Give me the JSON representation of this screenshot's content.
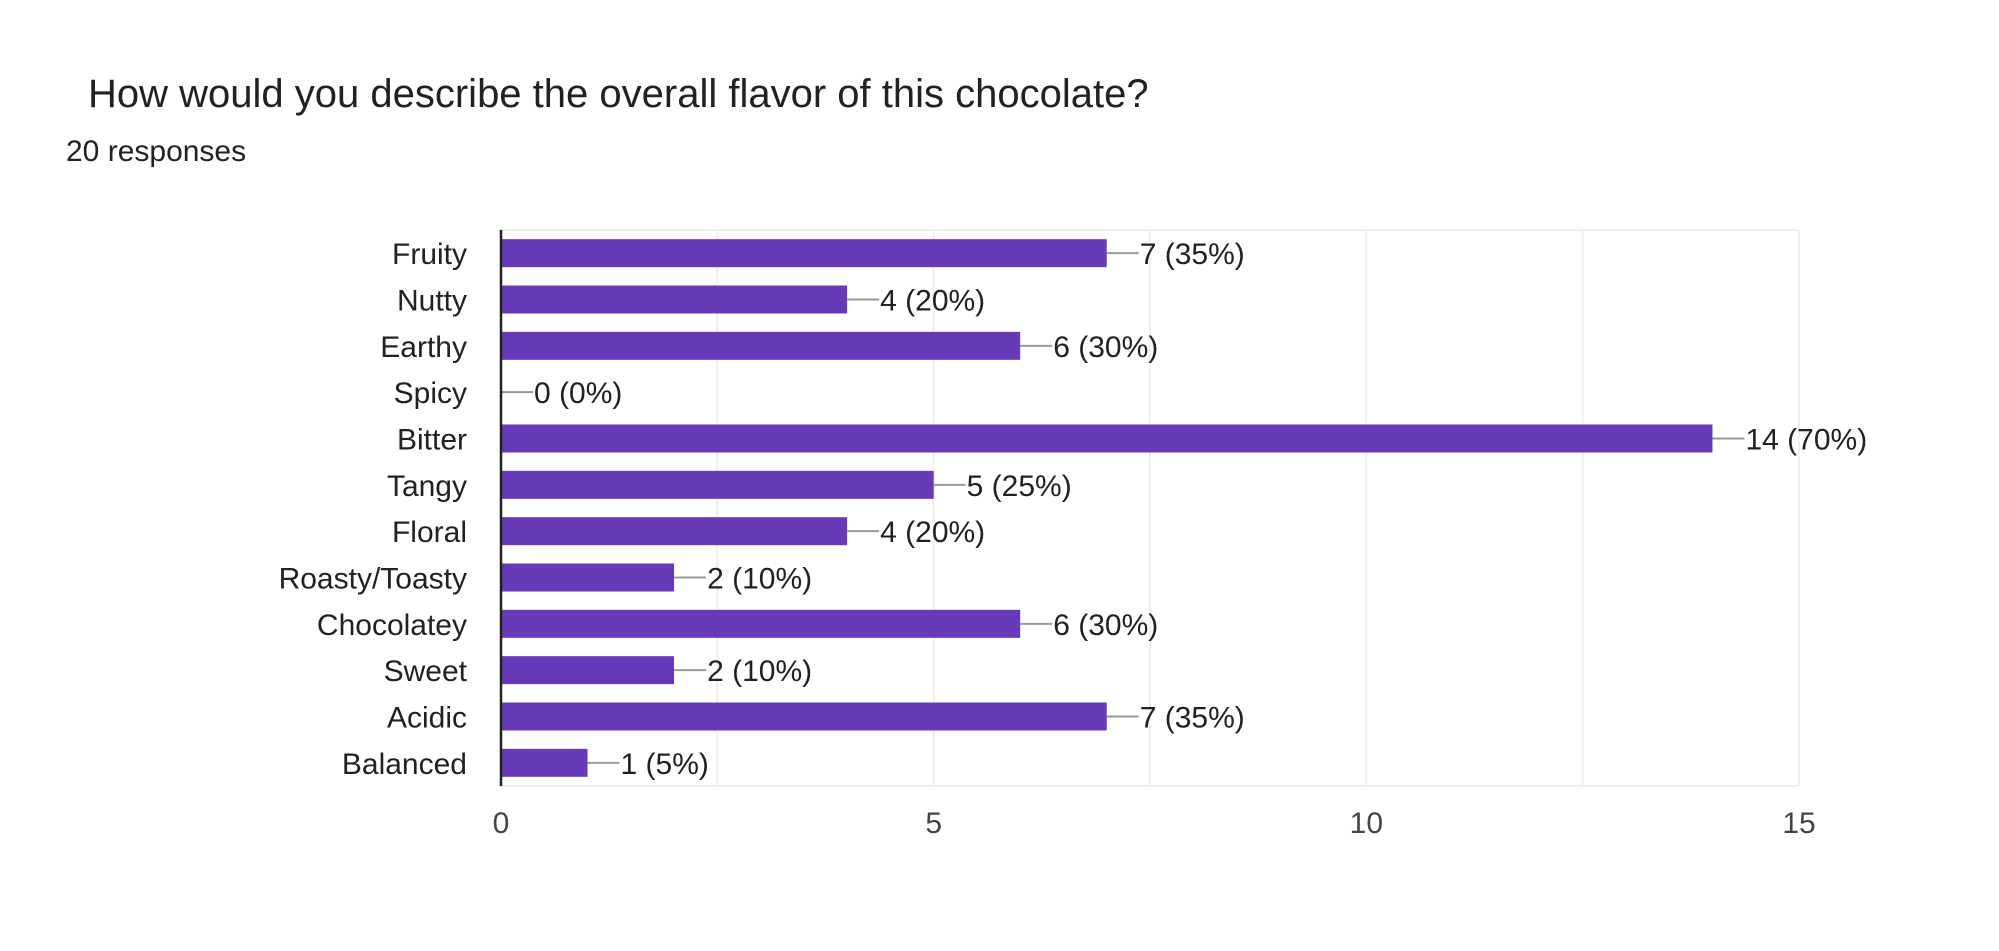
{
  "question": {
    "title": "How would you describe the overall flavor of this chocolate?",
    "responses": "20 responses"
  },
  "colors": {
    "bar": "#673ab7",
    "gridline": "#eeeeee",
    "leader_line": "#999999",
    "axis_line": "#202124",
    "text": "#202124",
    "tick_text": "#444444"
  },
  "chart_data": {
    "type": "bar",
    "orientation": "horizontal",
    "title": "How would you describe the overall flavor of this chocolate?",
    "subtitle": "20 responses",
    "categories": [
      "Fruity",
      "Nutty",
      "Earthy",
      "Spicy",
      "Bitter",
      "Tangy",
      "Floral",
      "Roasty/Toasty",
      "Chocolatey",
      "Sweet",
      "Acidic",
      "Balanced"
    ],
    "values": [
      7,
      4,
      6,
      0,
      14,
      5,
      4,
      2,
      6,
      2,
      7,
      1
    ],
    "data_labels": [
      "7 (35%)",
      "4 (20%)",
      "6 (30%)",
      "0 (0%)",
      "14 (70%)",
      "5 (25%)",
      "4 (20%)",
      "2 (10%)",
      "6 (30%)",
      "2 (10%)",
      "7 (35%)",
      "1 (5%)"
    ],
    "xlim": [
      0,
      15
    ],
    "xticks": [
      0,
      5,
      10,
      15
    ],
    "xtick_labels": [
      "0",
      "5",
      "10",
      "15"
    ],
    "xlabel": "",
    "ylabel": "",
    "grid": true
  }
}
